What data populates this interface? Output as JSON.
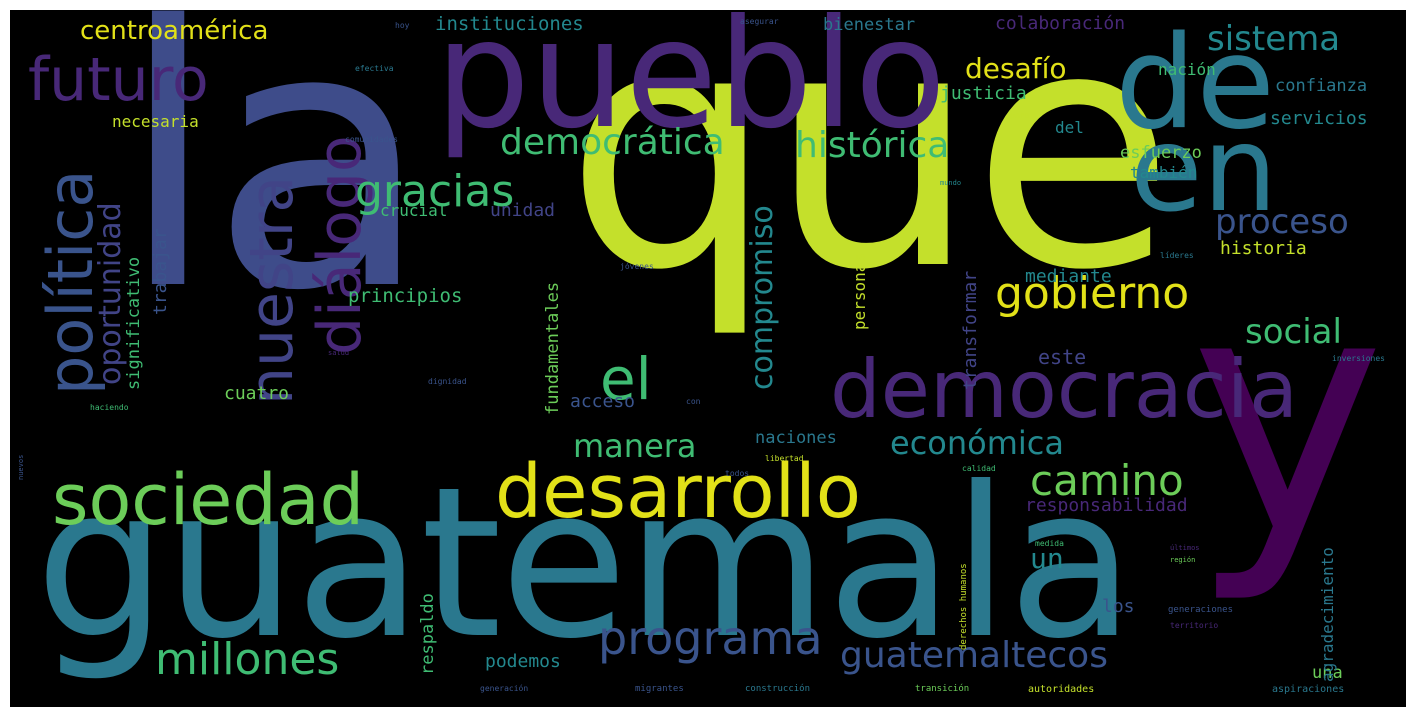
{
  "words": {
    "la": "la",
    "que": "que",
    "y": "y",
    "guatemala": "guatemala",
    "pueblo": "pueblo",
    "de": "de",
    "en": "en",
    "democracia": "democracia",
    "desarrollo": "desarrollo",
    "sociedad": "sociedad",
    "futuro": "futuro",
    "nuestra": "nuestra",
    "dialogo": "diálogo",
    "politica": "política",
    "programa": "programa",
    "millones": "millones",
    "guatemaltecos": "guatemaltecos",
    "camino": "camino",
    "gobierno": "gobierno",
    "el": "el",
    "gracias": "gracias",
    "democratica": "democrática",
    "historica": "histórica",
    "sistema": "sistema",
    "desafio": "desafío",
    "proceso": "proceso",
    "social": "social",
    "economica": "económica",
    "manera": "manera",
    "oportunidad": "oportunidad",
    "compromiso": "compromiso",
    "centroamerica": "centroamérica",
    "instituciones": "instituciones",
    "bienestar": "bienestar",
    "colaboracion": "colaboración",
    "necesaria": "necesaria",
    "justicia": "justicia",
    "nacion": "nación",
    "confianza": "confianza",
    "servicios": "servicios",
    "esfuerzo": "esfuerzo",
    "tambien": "también",
    "historia": "historia",
    "del": "del",
    "unidad": "unidad",
    "crucial": "crucial",
    "principios": "principios",
    "mediante": "mediante",
    "este": "este",
    "cuatro": "cuatro",
    "acceso": "acceso",
    "naciones": "naciones",
    "responsabilidad": "responsabilidad",
    "un": "un",
    "los": "los",
    "una": "una",
    "podemos": "podemos",
    "trabajar": "trabajar",
    "significativo": "significativo",
    "fundamentales": "fundamentales",
    "personas": "personas",
    "transformar": "transformar",
    "respaldo": "respaldo",
    "agradecimiento": "agradecimiento",
    "derechos_humanos": "derechos humanos",
    "generaciones": "generaciones",
    "territorio": "territorio",
    "aspiraciones": "aspiraciones",
    "autoridades": "autoridades",
    "construccion": "construcción",
    "migrantes": "migrantes",
    "generacion": "generación",
    "transicion": "transición",
    "libertad": "libertad",
    "calidad": "calidad",
    "todos": "todos",
    "jovenes": "jóvenes",
    "lideres": "líderes",
    "mundo": "mundo",
    "para": "para",
    "hoy": "hoy",
    "asegurar": "asegurar",
    "efectiva": "efectiva",
    "comunidades": "comunidades",
    "haciendo": "haciendo",
    "salud": "salud",
    "dignidad": "dignidad",
    "con": "con",
    "inversiones": "inversiones",
    "medida": "medida",
    "ultimos": "últimos",
    "region": "región",
    "nuevos": "nuevos"
  },
  "colors": {
    "lime": "#c4e02b",
    "yellow": "#e2e118",
    "green": "#6ccd59",
    "teal_green": "#3fbc73",
    "teal": "#2a788e",
    "teal_light": "#23888e",
    "blue": "#3e4c8a",
    "blue_dark": "#3a548c",
    "purple": "#482878",
    "purple_dark": "#440154",
    "indigo": "#414487",
    "background": "#000000"
  }
}
